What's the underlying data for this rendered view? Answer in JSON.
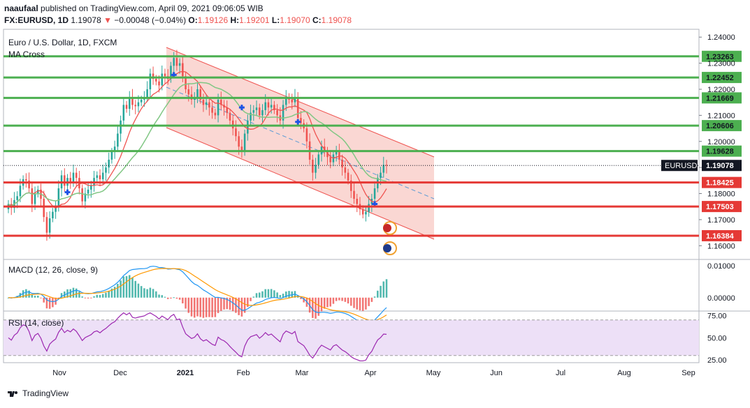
{
  "header": {
    "user": "naaufaal",
    "published_text": "published on TradingView.com, April 09, 2021 09:06:05 WIB",
    "symbol": "FX:EURUSD, 1D",
    "last": "1.19078",
    "change_arrow": "▼",
    "change": "−0.00048 (−0.04%)",
    "o_label": "O:",
    "o": "1.19126",
    "h_label": "H:",
    "h": "1.19201",
    "l_label": "L:",
    "l": "1.19070",
    "c_label": "C:",
    "c": "1.19078"
  },
  "footer": {
    "brand": "TradingView"
  },
  "colors": {
    "up": "#26a69a",
    "down": "#ef5350",
    "resistance": "#4caf50",
    "support": "#e53935",
    "channel_fill": "#f8c9c4",
    "ma_fast": "#ef5350",
    "ma_slow": "#81c784",
    "macd": "#2196f3",
    "signal": "#ff9800",
    "rsi": "#9c27b0",
    "rsi_band": "#ede0f7"
  },
  "chart_data": [
    {
      "type": "candlestick",
      "title": "Euro / U.S. Dollar, 1D, FXCM",
      "indicator_label": "MA Cross",
      "ylim": [
        1.155,
        1.243
      ],
      "y_ticks": [
        "1.16000",
        "1.17000",
        "1.18000",
        "1.19000",
        "1.20000",
        "1.21000",
        "1.22000",
        "1.23000",
        "1.24000"
      ],
      "x_ticks": [
        "Nov",
        "Dec",
        "2021",
        "Feb",
        "Mar",
        "Apr",
        "May",
        "Jun",
        "Jul",
        "Aug",
        "Sep"
      ],
      "last_price_label": "EURUSD",
      "last_price": "1.19078",
      "resistance_levels": [
        "1.23263",
        "1.22452",
        "1.21669",
        "1.20606",
        "1.19628"
      ],
      "support_levels": [
        "1.18425",
        "1.17503",
        "1.16384"
      ],
      "close": [
        1.176,
        1.1745,
        1.1775,
        1.179,
        1.183,
        1.1855,
        1.185,
        1.182,
        1.176,
        1.18,
        1.1815,
        1.178,
        1.171,
        1.165,
        1.1705,
        1.173,
        1.175,
        1.182,
        1.187,
        1.183,
        1.186,
        1.1845,
        1.188,
        1.186,
        1.182,
        1.177,
        1.18,
        1.1815,
        1.183,
        1.186,
        1.187,
        1.1855,
        1.188,
        1.19,
        1.193,
        1.196,
        1.198,
        1.203,
        1.208,
        1.214,
        1.2125,
        1.217,
        1.214,
        1.2135,
        1.215,
        1.216,
        1.217,
        1.22,
        1.226,
        1.224,
        1.223,
        1.2215,
        1.226,
        1.225,
        1.224,
        1.229,
        1.232,
        1.229,
        1.23,
        1.225,
        1.22,
        1.218,
        1.216,
        1.217,
        1.22,
        1.216,
        1.214,
        1.215,
        1.213,
        1.211,
        1.21,
        1.216,
        1.214,
        1.213,
        1.211,
        1.208,
        1.205,
        1.202,
        1.198,
        1.196,
        1.203,
        1.208,
        1.211,
        1.212,
        1.213,
        1.21,
        1.212,
        1.215,
        1.213,
        1.214,
        1.212,
        1.21,
        1.208,
        1.214,
        1.217,
        1.216,
        1.215,
        1.217,
        1.209,
        1.207,
        1.205,
        1.2,
        1.193,
        1.188,
        1.191,
        1.195,
        1.198,
        1.196,
        1.194,
        1.192,
        1.195,
        1.196,
        1.193,
        1.19,
        1.188,
        1.185,
        1.181,
        1.178,
        1.176,
        1.174,
        1.172,
        1.173,
        1.176,
        1.178,
        1.182,
        1.186,
        1.188,
        1.191,
        1.1908
      ]
    },
    {
      "type": "histogram",
      "title": "MACD (12, 26, close, 9)",
      "y_ticks": [
        "0.01000",
        "0.00000"
      ]
    },
    {
      "type": "line",
      "title": "RSI (14, close)",
      "y_ticks": [
        "75.00",
        "50.00",
        "25.00"
      ],
      "band": [
        30,
        70
      ]
    }
  ]
}
